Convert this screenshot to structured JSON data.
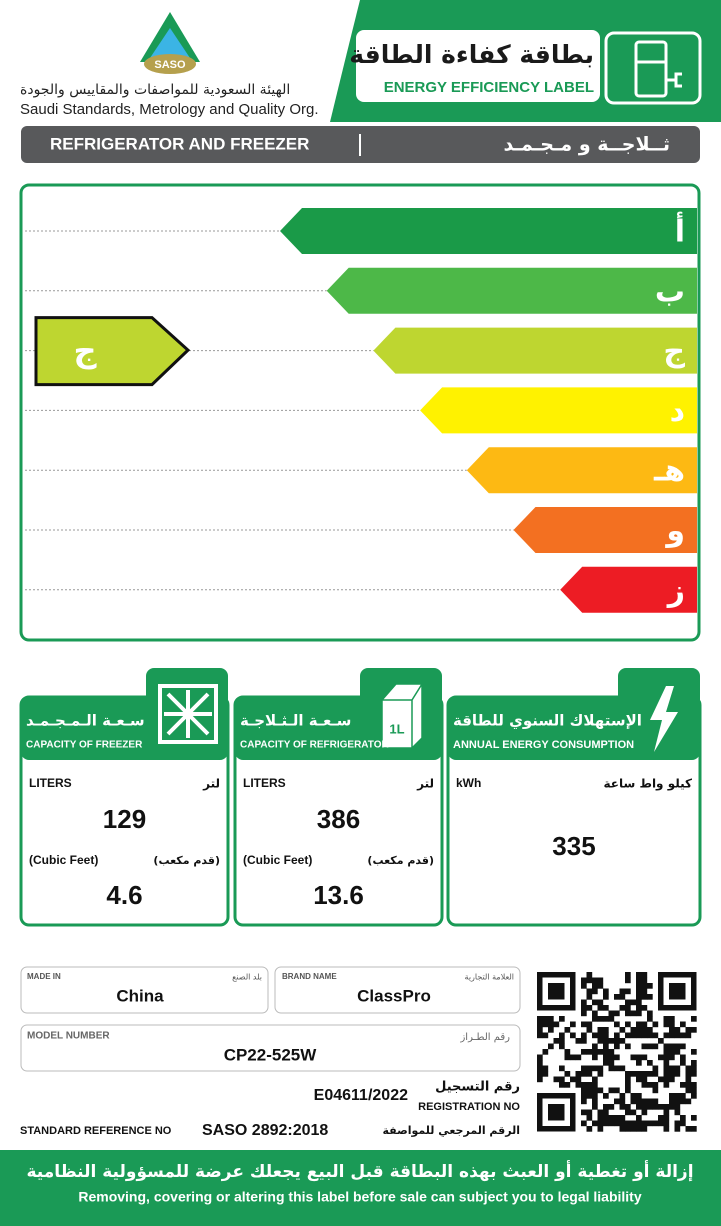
{
  "header": {
    "logo_text": "SASO",
    "org_ar": "الهيئة السعودية للمواصفات والمقاييس والجودة",
    "org_en": "Saudi Standards, Metrology and Quality Org.",
    "title_ar": "بطاقة كفاءة الطاقة",
    "title_en": "ENERGY EFFICIENCY LABEL"
  },
  "product": {
    "en": "REFRIGERATOR AND FREEZER",
    "ar": "ثــلاجــة و مـجـمـد"
  },
  "rating": {
    "classes": [
      "أ",
      "ب",
      "ج",
      "د",
      "هـ",
      "و",
      "ز"
    ],
    "rated_class": "ج"
  },
  "panels": [
    {
      "title_ar": "سـعـة الـمـجـمـد",
      "title_en": "CAPACITY OF FREEZER",
      "unit_en": "LITERS",
      "unit_ar": "لتر",
      "value": 129,
      "unit2_en": "(Cubic Feet)",
      "unit2_ar": "(قدم مكعب)",
      "value2": 4.6
    },
    {
      "title_ar": "سـعـة الـثـلاجـة",
      "title_en": "CAPACITY OF REFRIGERATOR",
      "icon_text": "1L",
      "unit_en": "LITERS",
      "unit_ar": "لتر",
      "value": 386,
      "unit2_en": "(Cubic Feet)",
      "unit2_ar": "(قدم مكعب)",
      "value2": 13.6
    },
    {
      "title_ar": "الإستهلاك السنوي للطاقة",
      "title_en": "ANNUAL ENERGY CONSUMPTION",
      "unit_en": "kWh",
      "unit_ar": "كيلو واط ساعة",
      "value": 335
    }
  ],
  "details": {
    "made_in": {
      "label_en": "MADE IN",
      "label_ar": "بلد الصنع",
      "value": "China"
    },
    "brand": {
      "label_en": "BRAND  NAME",
      "label_ar": "العلامة التجارية",
      "value": "ClassPro"
    },
    "model": {
      "label_en": "MODEL NUMBER",
      "label_ar": "رقم الطـراز",
      "value": "CP22-525W"
    },
    "registration": {
      "value": "E04611/2022",
      "label_ar": "رقم التسجيل",
      "label_en": "REGISTRATION NO"
    },
    "standard": {
      "label_en": "STANDARD REFERENCE NO",
      "value": "SASO 2892:2018",
      "label_ar": "الرقم المرجعي للمواصفة"
    }
  },
  "footer": {
    "ar": "إزالة أو تغطية أو العبث بهذه البطاقة قبل البيع يجعلك عرضة للمسؤولية النظامية",
    "en": "Removing, covering or altering this label before sale can subject you to legal liability"
  }
}
